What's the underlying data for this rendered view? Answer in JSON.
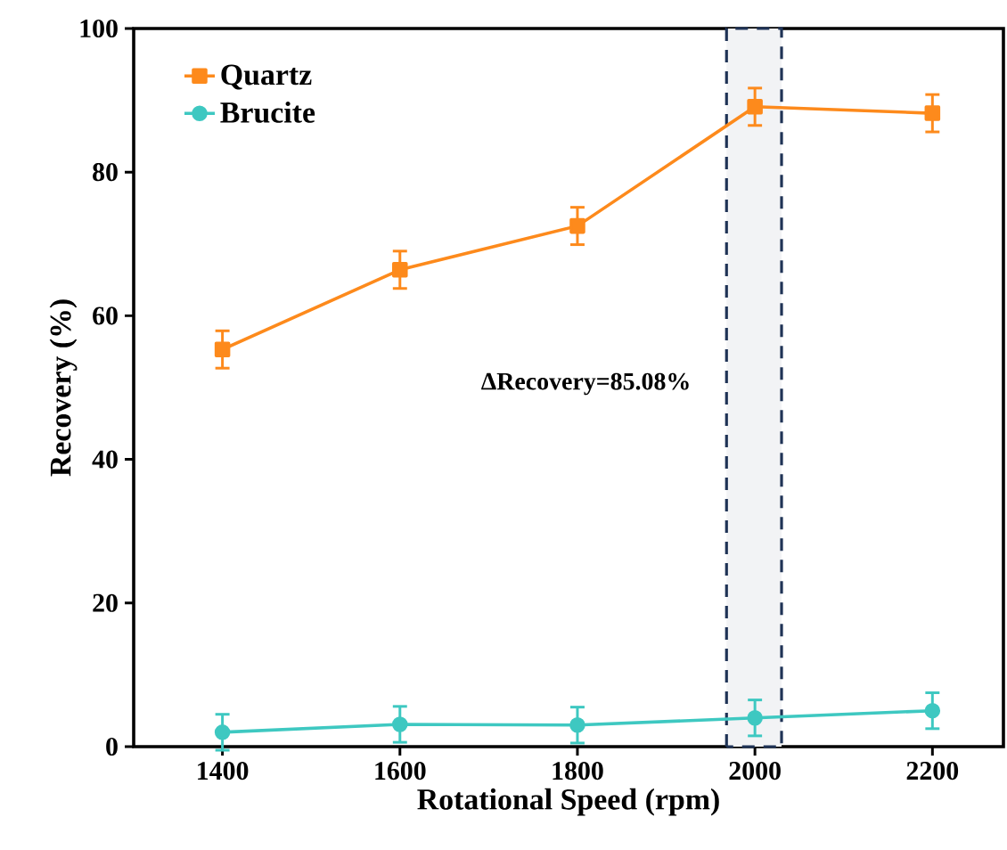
{
  "chart_data": {
    "type": "line",
    "xlabel": "Rotational Speed (rpm)",
    "ylabel": "Recovery (%)",
    "x": [
      1400,
      1600,
      1800,
      2000,
      2200
    ],
    "series": [
      {
        "name": "Quartz",
        "color": "#fd8a1c",
        "marker": "square",
        "values": [
          55.3,
          66.4,
          72.5,
          89.1,
          88.2
        ],
        "errors": [
          2.6,
          2.6,
          2.6,
          2.6,
          2.6
        ]
      },
      {
        "name": "Brucite",
        "color": "#3ec8c1",
        "marker": "circle",
        "values": [
          2.0,
          3.1,
          3.0,
          4.0,
          5.0
        ],
        "errors": [
          2.5,
          2.5,
          2.5,
          2.5,
          2.5
        ]
      }
    ],
    "xlim": [
      1300,
      2280
    ],
    "xticks": [
      1400,
      1600,
      1800,
      2000,
      2200
    ],
    "ylim": [
      0,
      100
    ],
    "yticks": [
      0,
      20,
      40,
      60,
      80,
      100
    ],
    "grid": false,
    "legend": "top left",
    "line_style": "solid",
    "bands": [
      {
        "axis": "x",
        "from": 1968,
        "to": 2030,
        "color": "#1f3356"
      }
    ],
    "annotations": [
      "ΔRecovery=85.08%"
    ]
  }
}
